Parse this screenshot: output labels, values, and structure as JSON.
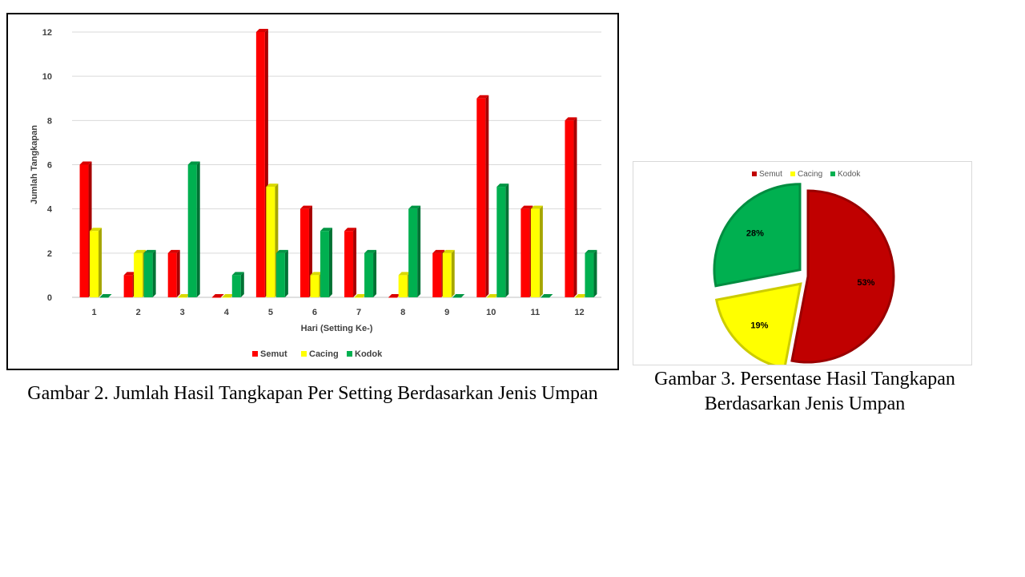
{
  "chart_data": [
    {
      "type": "bar",
      "title": "",
      "xlabel": "Hari (Setting Ke-)",
      "ylabel": "Jumlah Tangkapan",
      "categories": [
        "1",
        "2",
        "3",
        "4",
        "5",
        "6",
        "7",
        "8",
        "9",
        "10",
        "11",
        "12"
      ],
      "ylim": [
        0,
        12
      ],
      "yticks": [
        "0",
        "2",
        "4",
        "6",
        "8",
        "10",
        "12"
      ],
      "grid": true,
      "legend_position": "bottom",
      "series": [
        {
          "name": "Semut",
          "color": "#ff0000",
          "values": [
            6,
            1,
            2,
            0,
            12,
            4,
            3,
            0,
            2,
            9,
            4,
            8
          ]
        },
        {
          "name": "Cacing",
          "color": "#ffff00",
          "values": [
            3,
            2,
            0,
            0,
            5,
            1,
            0,
            1,
            2,
            0,
            4,
            0
          ]
        },
        {
          "name": "Kodok",
          "color": "#00b050",
          "values": [
            0,
            2,
            6,
            1,
            2,
            3,
            2,
            4,
            0,
            5,
            0,
            2
          ]
        }
      ]
    },
    {
      "type": "pie",
      "title": "",
      "legend_position": "top",
      "slices": [
        {
          "name": "Semut",
          "value": 53,
          "label": "53%",
          "color": "#c00000",
          "exploded": false
        },
        {
          "name": "Cacing",
          "value": 19,
          "label": "19%",
          "color": "#ffff00",
          "exploded": true
        },
        {
          "name": "Kodok",
          "value": 28,
          "label": "28%",
          "color": "#00b050",
          "exploded": true
        }
      ]
    }
  ],
  "captions": {
    "bar": "Gambar 2. Jumlah Hasil Tangkapan Per Setting Berdasarkan Jenis Umpan",
    "pie_line1": "Gambar 3. Persentase Hasil Tangkapan",
    "pie_line2": "Berdasarkan Jenis Umpan"
  }
}
